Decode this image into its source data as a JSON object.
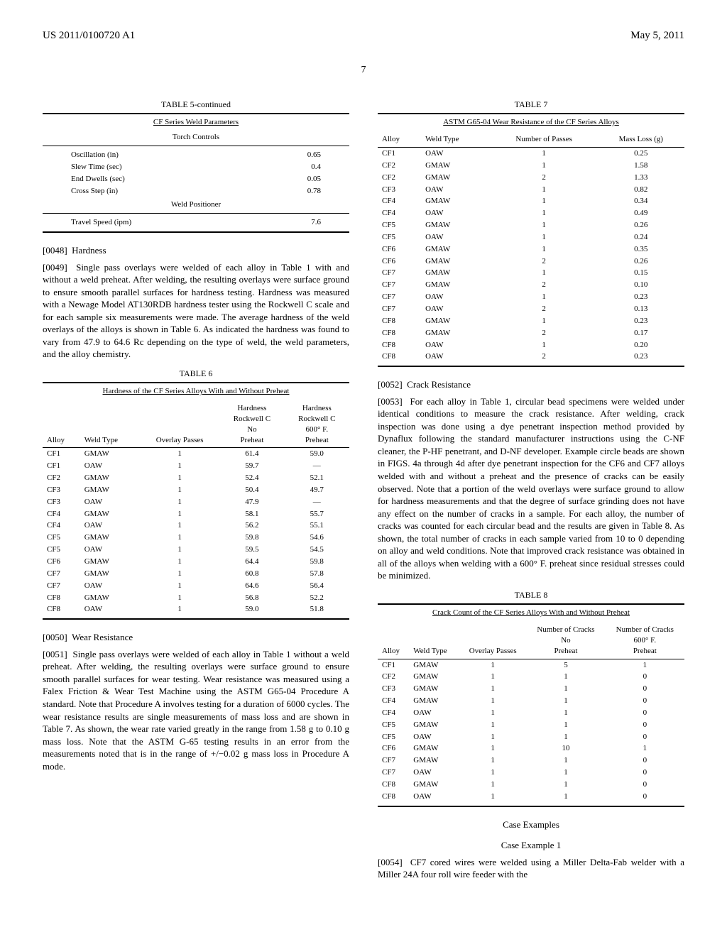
{
  "header": {
    "pub_number": "US 2011/0100720 A1",
    "date": "May 5, 2011",
    "page_col_left": "7"
  },
  "table5": {
    "label": "TABLE 5-continued",
    "subtitle": "CF Series Weld Parameters",
    "section1": "Torch Controls",
    "rows1": [
      {
        "k": "Oscillation (in)",
        "v": "0.65"
      },
      {
        "k": "Slew Time (sec)",
        "v": "0.4"
      },
      {
        "k": "End Dwells (sec)",
        "v": "0.05"
      },
      {
        "k": "Cross Step (in)",
        "v": "0.78"
      }
    ],
    "section2": "Weld Positioner",
    "rows2": [
      {
        "k": "Travel Speed (ipm)",
        "v": "7.6"
      }
    ]
  },
  "p0048": {
    "num": "[0048]",
    "text": "Hardness"
  },
  "p0049": {
    "num": "[0049]",
    "text": "Single pass overlays were welded of each alloy in Table 1 with and without a weld preheat. After welding, the resulting overlays were surface ground to ensure smooth parallel surfaces for hardness testing. Hardness was measured with a Newage Model AT130RDB hardness tester using the Rockwell C scale and for each sample six measurements were made. The average hardness of the weld overlays of the alloys is shown in Table 6. As indicated the hardness was found to vary from 47.9 to 64.6 Rc depending on the type of weld, the weld parameters, and the alloy chemistry."
  },
  "table6": {
    "label": "TABLE 6",
    "subtitle": "Hardness of the CF Series Alloys With and Without Preheat",
    "columns": [
      "Alloy",
      "Weld Type",
      "Overlay Passes",
      "Hardness Rockwell C No Preheat",
      "Hardness Rockwell C 600° F. Preheat"
    ],
    "rows": [
      [
        "CF1",
        "GMAW",
        "1",
        "61.4",
        "59.0"
      ],
      [
        "CF1",
        "OAW",
        "1",
        "59.7",
        "—"
      ],
      [
        "CF2",
        "GMAW",
        "1",
        "52.4",
        "52.1"
      ],
      [
        "CF3",
        "GMAW",
        "1",
        "50.4",
        "49.7"
      ],
      [
        "CF3",
        "OAW",
        "1",
        "47.9",
        "—"
      ],
      [
        "CF4",
        "GMAW",
        "1",
        "58.1",
        "55.7"
      ],
      [
        "CF4",
        "OAW",
        "1",
        "56.2",
        "55.1"
      ],
      [
        "CF5",
        "GMAW",
        "1",
        "59.8",
        "54.6"
      ],
      [
        "CF5",
        "OAW",
        "1",
        "59.5",
        "54.5"
      ],
      [
        "CF6",
        "GMAW",
        "1",
        "64.4",
        "59.8"
      ],
      [
        "CF7",
        "GMAW",
        "1",
        "60.8",
        "57.8"
      ],
      [
        "CF7",
        "OAW",
        "1",
        "64.6",
        "56.4"
      ],
      [
        "CF8",
        "GMAW",
        "1",
        "56.8",
        "52.2"
      ],
      [
        "CF8",
        "OAW",
        "1",
        "59.0",
        "51.8"
      ]
    ]
  },
  "p0050": {
    "num": "[0050]",
    "text": "Wear Resistance"
  },
  "p0051": {
    "num": "[0051]",
    "text": "Single pass overlays were welded of each alloy in Table 1 without a weld preheat. After welding, the resulting overlays were surface ground to ensure smooth parallel surfaces for wear testing. Wear resistance was measured using a Falex Friction & Wear Test Machine using the ASTM G65-04 Procedure A standard. Note that Procedure A involves testing for a duration of 6000 cycles. The wear resistance results are single measurements of mass loss and are shown in Table 7. As shown, the wear rate varied greatly in the range from 1.58 g to 0.10 g mass loss. Note that the ASTM G-65 testing results in an error from the measurements noted that is in the range of +/−0.02 g mass loss in Procedure A mode."
  },
  "table7": {
    "label": "TABLE 7",
    "subtitle": "ASTM G65-04 Wear Resistance of the CF Series Alloys",
    "columns": [
      "Alloy",
      "Weld Type",
      "Number of Passes",
      "Mass Loss (g)"
    ],
    "rows": [
      [
        "CF1",
        "OAW",
        "1",
        "0.25"
      ],
      [
        "CF2",
        "GMAW",
        "1",
        "1.58"
      ],
      [
        "CF2",
        "GMAW",
        "2",
        "1.33"
      ],
      [
        "CF3",
        "OAW",
        "1",
        "0.82"
      ],
      [
        "CF4",
        "GMAW",
        "1",
        "0.34"
      ],
      [
        "CF4",
        "OAW",
        "1",
        "0.49"
      ],
      [
        "CF5",
        "GMAW",
        "1",
        "0.26"
      ],
      [
        "CF5",
        "OAW",
        "1",
        "0.24"
      ],
      [
        "CF6",
        "GMAW",
        "1",
        "0.35"
      ],
      [
        "CF6",
        "GMAW",
        "2",
        "0.26"
      ],
      [
        "CF7",
        "GMAW",
        "1",
        "0.15"
      ],
      [
        "CF7",
        "GMAW",
        "2",
        "0.10"
      ],
      [
        "CF7",
        "OAW",
        "1",
        "0.23"
      ],
      [
        "CF7",
        "OAW",
        "2",
        "0.13"
      ],
      [
        "CF8",
        "GMAW",
        "1",
        "0.23"
      ],
      [
        "CF8",
        "GMAW",
        "2",
        "0.17"
      ],
      [
        "CF8",
        "OAW",
        "1",
        "0.20"
      ],
      [
        "CF8",
        "OAW",
        "2",
        "0.23"
      ]
    ]
  },
  "p0052": {
    "num": "[0052]",
    "text": "Crack Resistance"
  },
  "p0053": {
    "num": "[0053]",
    "text": "For each alloy in Table 1, circular bead specimens were welded under identical conditions to measure the crack resistance. After welding, crack inspection was done using a dye penetrant inspection method provided by Dynaflux following the standard manufacturer instructions using the C-NF cleaner, the P-HF penetrant, and D-NF developer. Example circle beads are shown in FIGS. 4a through 4d after dye penetrant inspection for the CF6 and CF7 alloys welded with and without a preheat and the presence of cracks can be easily observed. Note that a portion of the weld overlays were surface ground to allow for hardness measurements and that the degree of surface grinding does not have any effect on the number of cracks in a sample. For each alloy, the number of cracks was counted for each circular bead and the results are given in Table 8. As shown, the total number of cracks in each sample varied from 10 to 0 depending on alloy and weld conditions. Note that improved crack resistance was obtained in all of the alloys when welding with a 600° F. preheat since residual stresses could be minimized."
  },
  "table8": {
    "label": "TABLE 8",
    "subtitle": "Crack Count of the CF Series Alloys With and Without Preheat",
    "columns": [
      "Alloy",
      "Weld Type",
      "Overlay Passes",
      "Number of Cracks No Preheat",
      "Number of Cracks 600° F. Preheat"
    ],
    "rows": [
      [
        "CF1",
        "GMAW",
        "1",
        "5",
        "1"
      ],
      [
        "CF2",
        "GMAW",
        "1",
        "1",
        "0"
      ],
      [
        "CF3",
        "GMAW",
        "1",
        "1",
        "0"
      ],
      [
        "CF4",
        "GMAW",
        "1",
        "1",
        "0"
      ],
      [
        "CF4",
        "OAW",
        "1",
        "1",
        "0"
      ],
      [
        "CF5",
        "GMAW",
        "1",
        "1",
        "0"
      ],
      [
        "CF5",
        "OAW",
        "1",
        "1",
        "0"
      ],
      [
        "CF6",
        "GMAW",
        "1",
        "10",
        "1"
      ],
      [
        "CF7",
        "GMAW",
        "1",
        "1",
        "0"
      ],
      [
        "CF7",
        "OAW",
        "1",
        "1",
        "0"
      ],
      [
        "CF8",
        "GMAW",
        "1",
        "1",
        "0"
      ],
      [
        "CF8",
        "OAW",
        "1",
        "1",
        "0"
      ]
    ]
  },
  "case_hdr1": "Case Examples",
  "case_hdr2": "Case Example 1",
  "p0054": {
    "num": "[0054]",
    "text": "CF7 cored wires were welded using a Miller Delta-Fab welder with a Miller 24A four roll wire feeder with the"
  }
}
